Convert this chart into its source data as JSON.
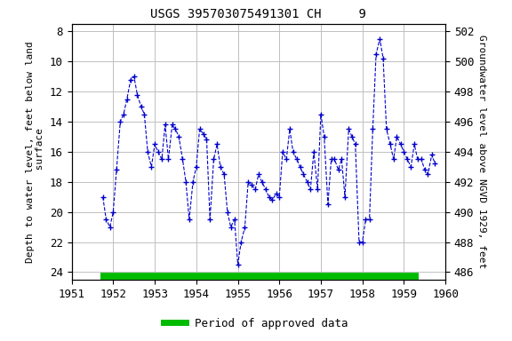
{
  "title": "USGS 395703075491301 CH     9",
  "ylabel_left": "Depth to water level, feet below land\n surface",
  "ylabel_right": "Groundwater level above NGVD 1929, feet",
  "xlim": [
    1951,
    1960
  ],
  "ylim_left": [
    24.5,
    7.5
  ],
  "ylim_right": [
    485.5,
    502.5
  ],
  "xticks": [
    1951,
    1952,
    1953,
    1954,
    1955,
    1956,
    1957,
    1958,
    1959,
    1960
  ],
  "yticks_left": [
    8,
    10,
    12,
    14,
    16,
    18,
    20,
    22,
    24
  ],
  "yticks_right": [
    486,
    488,
    490,
    492,
    494,
    496,
    498,
    500,
    502
  ],
  "line_color": "#0000cc",
  "marker": "+",
  "linestyle": "--",
  "legend_label": "Period of approved data",
  "legend_color": "#00bb00",
  "background_color": "#ffffff",
  "grid_color": "#c0c0c0",
  "title_fontsize": 10,
  "axis_label_fontsize": 8,
  "tick_fontsize": 9,
  "data_x": [
    1951.75,
    1951.83,
    1951.92,
    1952.0,
    1952.08,
    1952.17,
    1952.25,
    1952.33,
    1952.42,
    1952.5,
    1952.58,
    1952.67,
    1952.75,
    1952.83,
    1952.92,
    1953.0,
    1953.08,
    1953.17,
    1953.25,
    1953.33,
    1953.42,
    1953.5,
    1953.58,
    1953.67,
    1953.75,
    1953.83,
    1953.92,
    1954.0,
    1954.08,
    1954.17,
    1954.25,
    1954.33,
    1954.42,
    1954.5,
    1954.58,
    1954.67,
    1954.75,
    1954.83,
    1954.92,
    1955.0,
    1955.08,
    1955.17,
    1955.25,
    1955.33,
    1955.42,
    1955.5,
    1955.58,
    1955.67,
    1955.75,
    1955.83,
    1955.92,
    1956.0,
    1956.08,
    1956.17,
    1956.25,
    1956.33,
    1956.42,
    1956.5,
    1956.58,
    1956.67,
    1956.75,
    1956.83,
    1956.92,
    1957.0,
    1957.08,
    1957.17,
    1957.25,
    1957.33,
    1957.42,
    1957.5,
    1957.58,
    1957.67,
    1957.75,
    1957.83,
    1957.92,
    1958.0,
    1958.08,
    1958.17,
    1958.25,
    1958.33,
    1958.42,
    1958.5,
    1958.58,
    1958.67,
    1958.75,
    1958.83,
    1958.92,
    1959.0,
    1959.08,
    1959.17,
    1959.25,
    1959.33,
    1959.42,
    1959.5,
    1959.58,
    1959.67,
    1959.75
  ],
  "data_y": [
    19.0,
    20.5,
    21.0,
    20.0,
    17.2,
    14.0,
    13.5,
    12.5,
    11.2,
    11.0,
    12.2,
    13.0,
    13.5,
    16.0,
    17.0,
    15.5,
    16.0,
    16.5,
    14.2,
    16.5,
    14.2,
    14.5,
    15.0,
    16.5,
    18.0,
    20.5,
    18.0,
    17.0,
    14.5,
    14.8,
    15.2,
    20.5,
    16.5,
    15.5,
    17.0,
    17.5,
    20.0,
    21.0,
    20.5,
    23.5,
    22.0,
    21.0,
    18.0,
    18.2,
    18.5,
    17.5,
    18.0,
    18.5,
    19.0,
    19.2,
    18.8,
    19.0,
    16.0,
    16.5,
    14.5,
    16.0,
    16.5,
    17.0,
    17.5,
    18.0,
    18.5,
    16.0,
    18.5,
    13.5,
    15.0,
    19.5,
    16.5,
    16.5,
    17.2,
    16.5,
    19.0,
    14.5,
    15.0,
    15.5,
    22.0,
    22.0,
    20.5,
    20.5,
    14.5,
    9.5,
    8.5,
    9.8,
    14.5,
    15.5,
    16.5,
    15.0,
    15.5,
    16.0,
    16.5,
    17.0,
    15.5,
    16.5,
    16.5,
    17.2,
    17.5,
    16.2,
    16.8
  ]
}
